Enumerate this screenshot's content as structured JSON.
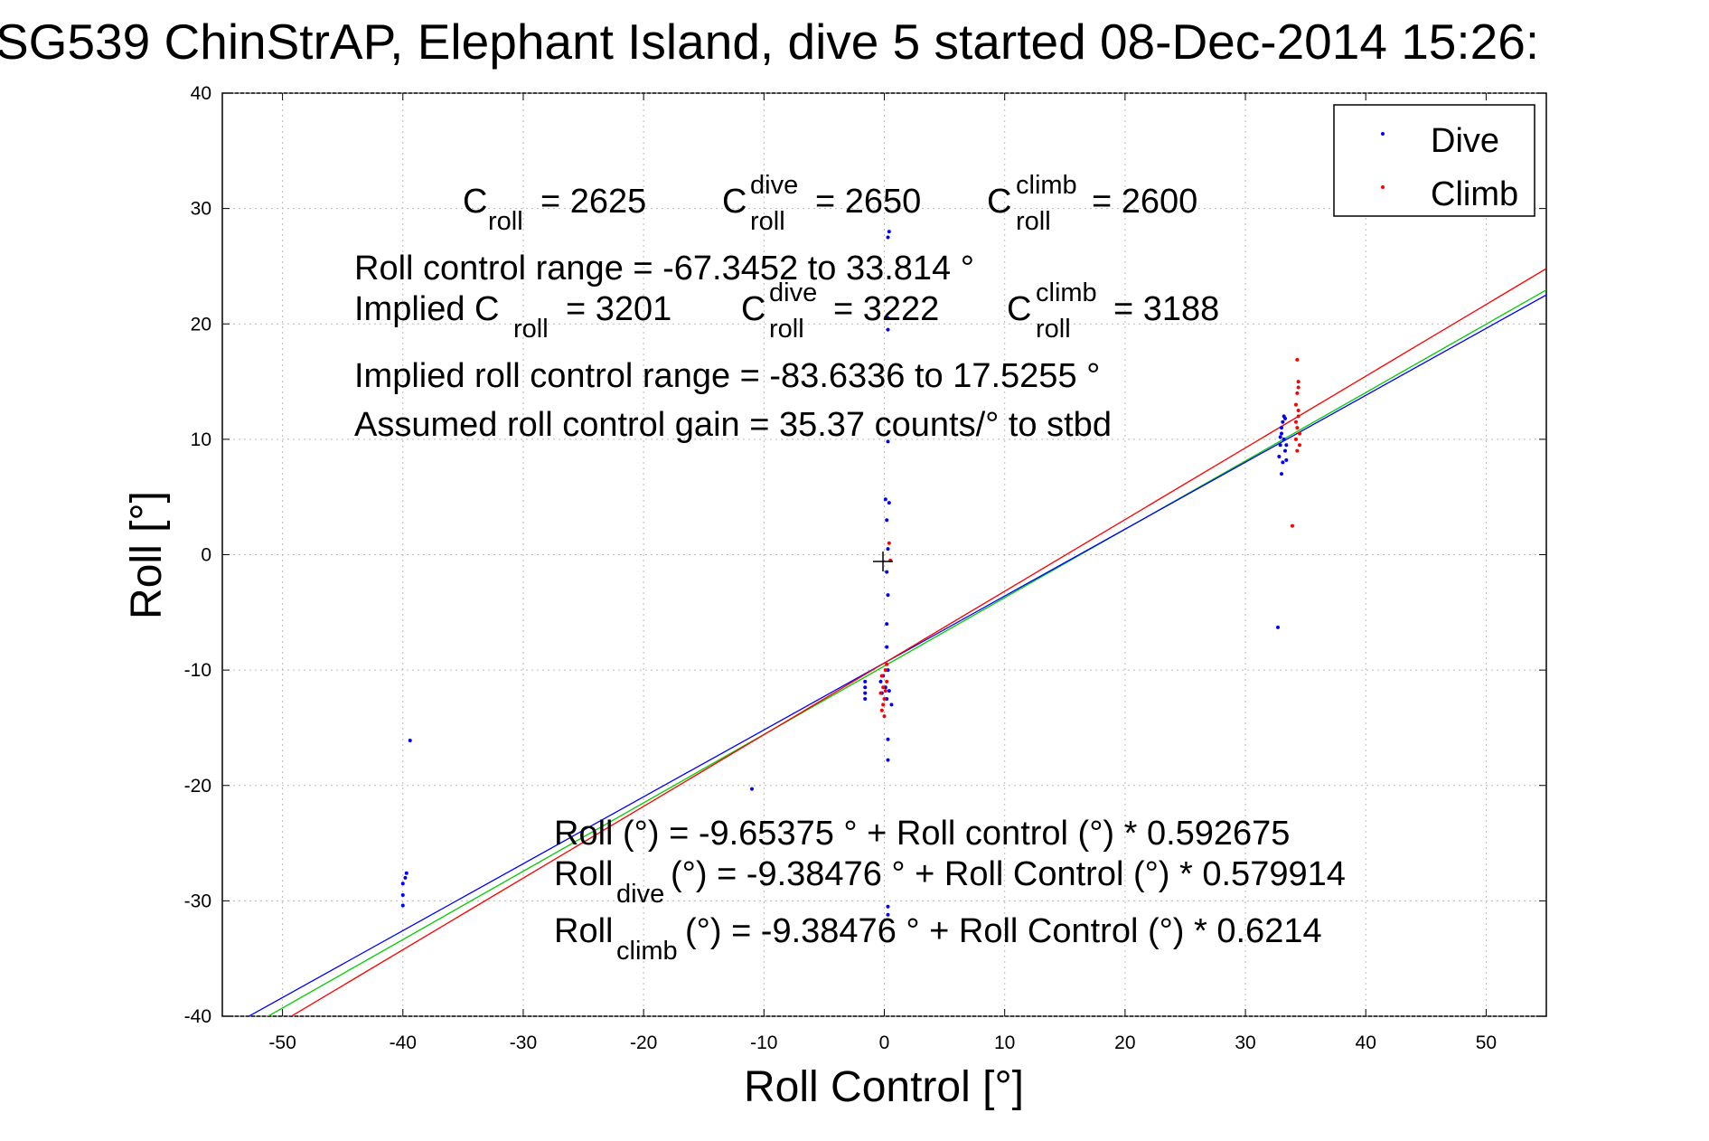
{
  "chart_data": {
    "type": "scatter",
    "title": "SG539 ChinStrAP, Elephant Island, dive 5 started 08-Dec-2014 15:26:",
    "xlabel": "Roll Control [°]",
    "ylabel": "Roll [°]",
    "xlim": [
      -55,
      55
    ],
    "ylim": [
      -40,
      40
    ],
    "grid": true,
    "legend_position": "top-right",
    "x_ticks": [
      "-50",
      "-40",
      "-30",
      "-20",
      "-10",
      "0",
      "10",
      "20",
      "30",
      "40",
      "50"
    ],
    "y_ticks": [
      "40",
      "30",
      "20",
      "10",
      "0",
      "-10",
      "-20",
      "-30",
      "-40"
    ],
    "series": [
      {
        "name": "Dive",
        "color": "#0000ff",
        "points": [
          [
            -40,
            -28.5
          ],
          [
            -40,
            -29.5
          ],
          [
            -40,
            -30.4
          ],
          [
            -39.7,
            -27.6
          ],
          [
            -39.8,
            -28
          ],
          [
            -39.4,
            -16.1
          ],
          [
            -11,
            -20.3
          ],
          [
            -1.6,
            -11
          ],
          [
            -1.6,
            -11.5
          ],
          [
            -1.6,
            -12
          ],
          [
            -1.6,
            -12.5
          ],
          [
            -0.3,
            -11
          ],
          [
            -0.2,
            -12
          ],
          [
            -0.1,
            -10.5
          ],
          [
            0.1,
            -11.5
          ],
          [
            0.2,
            -12.5
          ],
          [
            0.3,
            -10
          ],
          [
            0.4,
            -11.8
          ],
          [
            0.6,
            -13
          ],
          [
            0.1,
            4.8
          ],
          [
            0.4,
            4.5
          ],
          [
            0.2,
            3
          ],
          [
            0.3,
            0.5
          ],
          [
            0.2,
            -1.5
          ],
          [
            0.3,
            -3.5
          ],
          [
            0.2,
            -6
          ],
          [
            0.2,
            -8
          ],
          [
            0.3,
            -16
          ],
          [
            0.3,
            -17.8
          ],
          [
            0.3,
            -30.5
          ],
          [
            0.3,
            -31.2
          ],
          [
            0.4,
            28
          ],
          [
            0.3,
            27.5
          ],
          [
            0.3,
            19.5
          ],
          [
            0.3,
            20.5
          ],
          [
            0.3,
            9.8
          ],
          [
            32.8,
            8.5
          ],
          [
            32.9,
            9.5
          ],
          [
            33.0,
            10.5
          ],
          [
            33.1,
            11.5
          ],
          [
            33.2,
            10
          ],
          [
            33.3,
            9
          ],
          [
            33.1,
            8
          ],
          [
            33.0,
            11
          ],
          [
            33.2,
            12
          ],
          [
            33.4,
            9.5
          ],
          [
            33.0,
            7
          ],
          [
            32.9,
            10.2
          ],
          [
            33.3,
            11.8
          ],
          [
            33.4,
            8.2
          ],
          [
            32.7,
            -6.3
          ]
        ]
      },
      {
        "name": "Climb",
        "color": "#ff0000",
        "points": [
          [
            -0.2,
            -10.5
          ],
          [
            -0.1,
            -11.5
          ],
          [
            0,
            -12.5
          ],
          [
            0.1,
            -10
          ],
          [
            0.2,
            -11
          ],
          [
            -0.3,
            -12
          ],
          [
            -0.1,
            -13
          ],
          [
            0.2,
            -9.5
          ],
          [
            0.1,
            -11.8
          ],
          [
            -0.2,
            -13.5
          ],
          [
            0,
            -14
          ],
          [
            0.4,
            1
          ],
          [
            0.5,
            -0.5
          ],
          [
            34.2,
            10
          ],
          [
            34.3,
            11
          ],
          [
            34.4,
            12
          ],
          [
            34.2,
            13
          ],
          [
            34.3,
            14
          ],
          [
            34.4,
            15
          ],
          [
            34.3,
            9
          ],
          [
            34.5,
            10.5
          ],
          [
            34.2,
            11.5
          ],
          [
            34.4,
            12.5
          ],
          [
            34.5,
            9.5
          ],
          [
            34.3,
            16.9
          ],
          [
            34.4,
            14.5
          ],
          [
            33.9,
            2.5
          ]
        ]
      }
    ],
    "fit_lines": [
      {
        "label": "all",
        "color": "#00cc00",
        "intercept": -9.65375,
        "slope": 0.592675
      },
      {
        "label": "dive",
        "color": "#0000ff",
        "intercept": -9.38476,
        "slope": 0.579914
      },
      {
        "label": "climb",
        "color": "#ff0000",
        "intercept": -9.38476,
        "slope": 0.6214
      }
    ],
    "annotations": {
      "c_roll": "2625",
      "c_roll_dive": "2650",
      "c_roll_climb": "2600",
      "roll_control_range": "Roll control range = -67.3452 to 33.814 °",
      "implied_c_roll": "3201",
      "implied_c_roll_dive": "3222",
      "implied_c_roll_climb": "3188",
      "implied_range": "Implied roll control range = -83.6336 to 17.5255 °",
      "gain": "Assumed roll control gain = 35.37 counts/° to stbd",
      "eq_all": "Roll (°) = -9.65375 ° + Roll control (°) * 0.592675",
      "eq_dive_rest": " (°) = -9.38476 ° + Roll Control (°) * 0.579914",
      "eq_climb_rest": " (°) = -9.38476 ° + Roll Control (°) * 0.6214"
    },
    "labels": {
      "C": "C",
      "roll_sub": "roll",
      "dive_sup": "dive",
      "climb_sup": "climb",
      "implied_prefix": "Implied C",
      "eq_prefix": "= ",
      "Roll": "Roll",
      "dive_sub": "dive",
      "climb_sub": "climb"
    }
  }
}
